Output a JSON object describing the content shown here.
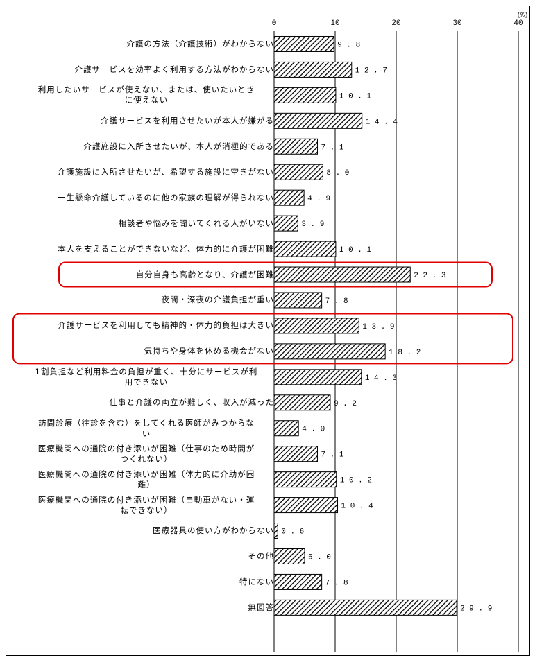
{
  "chart_data": {
    "type": "bar",
    "orientation": "horizontal",
    "unit": "(%)",
    "xlim": [
      0,
      40
    ],
    "ticks": [
      0,
      10,
      20,
      30,
      40
    ],
    "grid": true,
    "categories": [
      "介護の方法（介護技術）がわからない",
      "介護サービスを効率よく利用する方法がわからない",
      "利用したいサービスが使えない、または、使いたいときに使えない",
      "介護サービスを利用させたいが本人が嫌がる",
      "介護施設に入所させたいが、本人が消極的である",
      "介護施設に入所させたいが、希望する施設に空きがない",
      "一生懸命介護しているのに他の家族の理解が得られない",
      "相談者や悩みを聞いてくれる人がいない",
      "本人を支えることができないなど、体力的に介護が困難",
      "自分自身も高齢となり、介護が困難",
      "夜間・深夜の介護負担が重い",
      "介護サービスを利用しても精神的・体力的負担は大きい",
      "気持ちや身体を休める機会がない",
      "1割負担など利用料金の負担が重く、十分にサービスが利用できない",
      "仕事と介護の両立が難しく、収入が減った",
      "訪問診療（往診を含む）をしてくれる医師がみつからない",
      "医療機関への通院の付き添いが困難（仕事のため時間がつくれない）",
      "医療機関への通院の付き添いが困難（体力的に介助が困難）",
      "医療機関への通院の付き添いが困難（自動車がない・運転できない）",
      "医療器具の使い方がわからない",
      "その他",
      "特にない",
      "無回答"
    ],
    "category_lines": [
      [
        "介護の方法（介護技術）がわからない"
      ],
      [
        "介護サービスを効率よく利用する方法がわからない"
      ],
      [
        "利用したいサービスが使えない、または、使いたいとき",
        "に使えない"
      ],
      [
        "介護サービスを利用させたいが本人が嫌がる"
      ],
      [
        "介護施設に入所させたいが、本人が消極的である"
      ],
      [
        "介護施設に入所させたいが、希望する施設に空きがない"
      ],
      [
        "一生懸命介護しているのに他の家族の理解が得られない"
      ],
      [
        "相談者や悩みを聞いてくれる人がいない"
      ],
      [
        "本人を支えることができないなど、体力的に介護が困難"
      ],
      [
        "自分自身も高齢となり、介護が困難"
      ],
      [
        "夜間・深夜の介護負担が重い"
      ],
      [
        "介護サービスを利用しても精神的・体力的負担は大きい"
      ],
      [
        "気持ちや身体を休める機会がない"
      ],
      [
        "1割負担など利用料金の負担が重く、十分にサービスが利",
        "用できない"
      ],
      [
        "仕事と介護の両立が難しく、収入が減った"
      ],
      [
        "訪問診療（往診を含む）をしてくれる医師がみつからな",
        "い"
      ],
      [
        "医療機関への通院の付き添いが困難（仕事のため時間が",
        "つくれない）"
      ],
      [
        "医療機関への通院の付き添いが困難（体力的に介助が困",
        "難）"
      ],
      [
        "医療機関への通院の付き添いが困難（自動車がない・運",
        "転できない）"
      ],
      [
        "医療器具の使い方がわからない"
      ],
      [
        "その他"
      ],
      [
        "特にない"
      ],
      [
        "無回答"
      ]
    ],
    "values": [
      9.8,
      12.7,
      10.1,
      14.4,
      7.1,
      8.0,
      4.9,
      3.9,
      10.1,
      22.3,
      7.8,
      13.9,
      18.2,
      14.3,
      9.2,
      4.0,
      7.1,
      10.2,
      10.4,
      0.6,
      5.0,
      7.8,
      29.9
    ],
    "value_labels": [
      "9.8",
      "12.7",
      "10.1",
      "14.4",
      "7.1",
      "8.0",
      "4.9",
      "3.9",
      "10.1",
      "22.3",
      "7.8",
      "13.9",
      "18.2",
      "14.3",
      "9.2",
      "4.0",
      "7.1",
      "10.2",
      "10.4",
      "0.6",
      "5.0",
      "7.8",
      "29.9"
    ],
    "highlight_groups": [
      [
        9
      ],
      [
        11,
        12
      ]
    ],
    "colors": {
      "bar_stroke": "#000000",
      "hatch": "#000000",
      "highlight": "#e00000",
      "grid": "#000000"
    }
  }
}
